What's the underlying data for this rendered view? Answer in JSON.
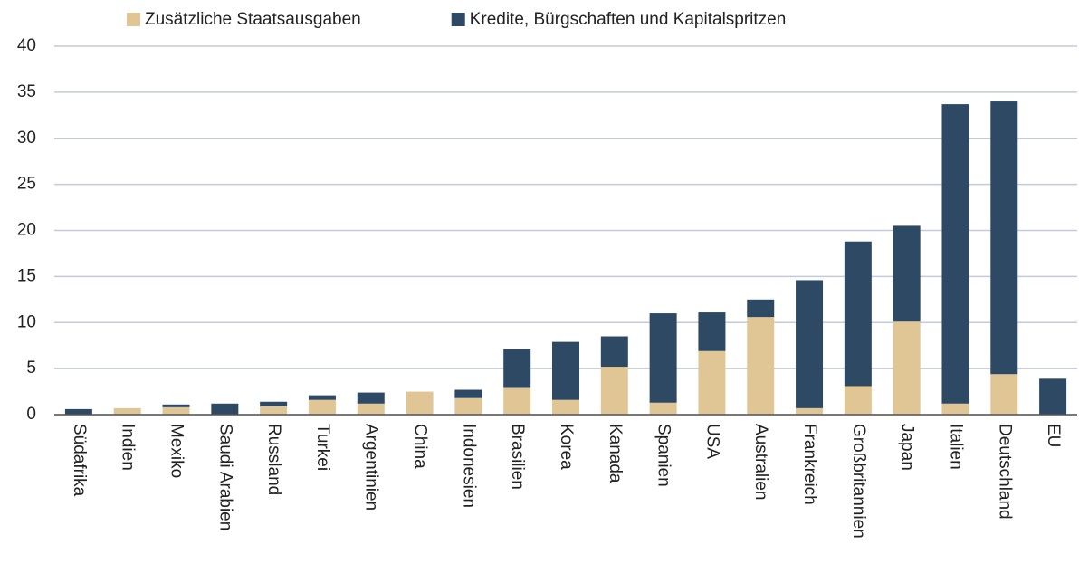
{
  "chart_data": {
    "type": "stacked_bar",
    "categories": [
      "Südafrika",
      "Indien",
      "Mexiko",
      "Saudi Arabien",
      "Russland",
      "Turkei",
      "Argentinien",
      "China",
      "Indonesien",
      "Brasilien",
      "Korea",
      "Kanada",
      "Spanien",
      "USA",
      "Australien",
      "Frankreich",
      "Großbritannien",
      "Japan",
      "Italien",
      "Deutschland",
      "EU"
    ],
    "series": [
      {
        "name": "Zusätzliche Staatsausgaben",
        "color": "#e0c595",
        "values": [
          0,
          0.7,
          0.8,
          0,
          0.9,
          1.6,
          1.2,
          2.5,
          1.8,
          2.9,
          1.6,
          5.2,
          1.3,
          6.9,
          10.6,
          0.7,
          3.1,
          10.1,
          1.2,
          4.4,
          0
        ]
      },
      {
        "name": "Kredite, Bürgschaften und Kapitalspritzen",
        "color": "#2e4964",
        "values": [
          0.6,
          0,
          0.3,
          1.2,
          0.5,
          0.5,
          1.2,
          0,
          0.9,
          4.2,
          6.3,
          3.3,
          9.7,
          4.2,
          1.9,
          13.9,
          15.7,
          10.4,
          32.5,
          29.6,
          3.9
        ]
      }
    ],
    "ylim": [
      0,
      40
    ],
    "yticks": [
      0,
      5,
      10,
      15,
      20,
      25,
      30,
      35,
      40
    ],
    "grid": true,
    "legend": "top"
  }
}
